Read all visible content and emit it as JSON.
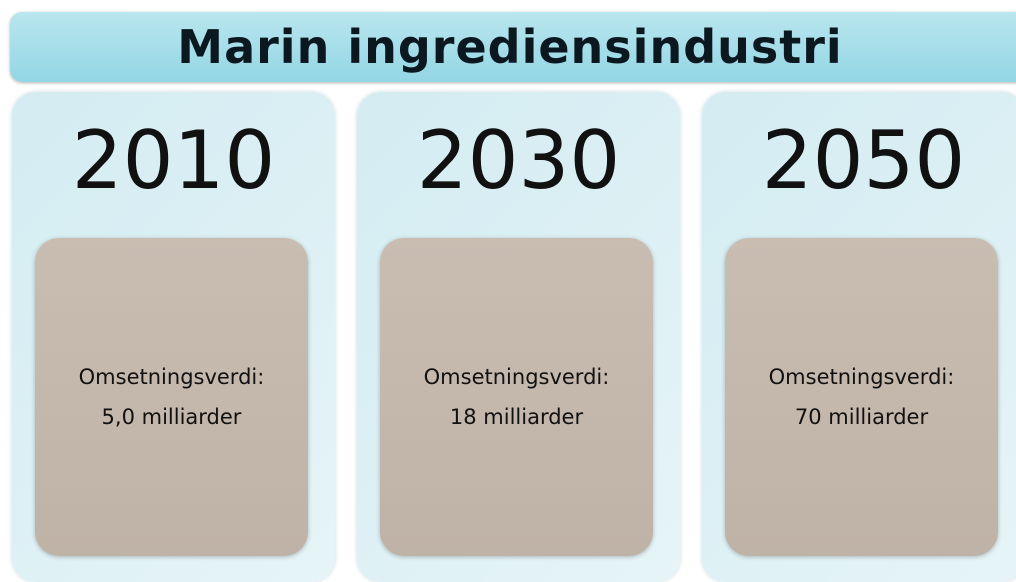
{
  "title": "Marin ingrediensindustri",
  "panels": [
    {
      "year": "2010",
      "label": "Omsetningsverdi:",
      "value": "5,0 milliarder"
    },
    {
      "year": "2030",
      "label": "Omsetningsverdi:",
      "value": "18 milliarder"
    },
    {
      "year": "2050",
      "label": "Omsetningsverdi:",
      "value": "70 milliarder"
    }
  ]
}
